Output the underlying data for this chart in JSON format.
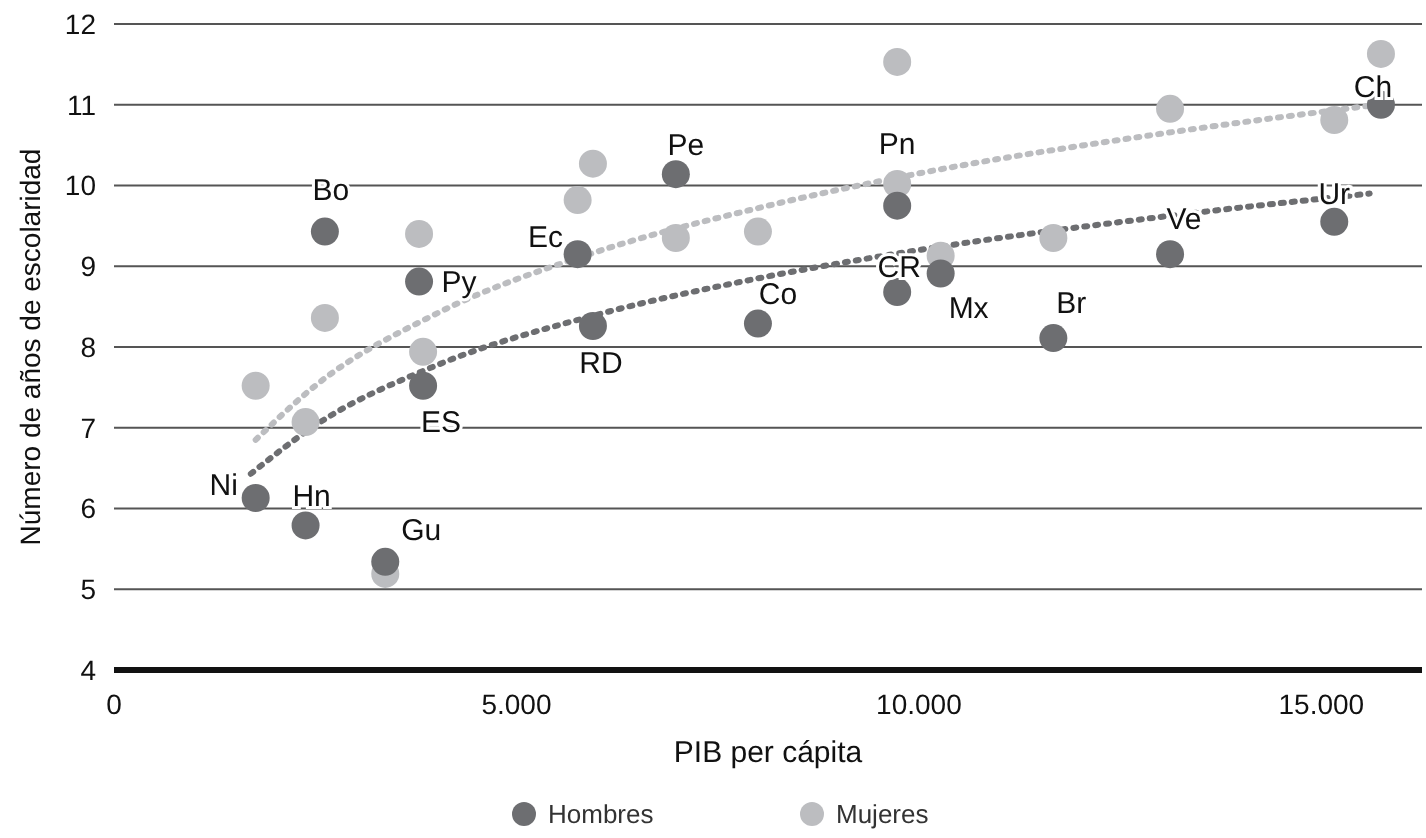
{
  "chart_data": {
    "type": "scatter",
    "xlabel": "PIB per cápita",
    "ylabel": "Número de años de escolaridad",
    "xlim": [
      0,
      16250
    ],
    "ylim": [
      4,
      12
    ],
    "xticks": [
      0,
      {
        "value": 5000,
        "label": "5.000"
      },
      {
        "value": 10000,
        "label": "10.000"
      },
      {
        "value": 15000,
        "label": "15.000"
      }
    ],
    "yticks": [
      4,
      5,
      6,
      7,
      8,
      9,
      10,
      11,
      12
    ],
    "grid": "y",
    "legend": "bottom",
    "marker": "circle",
    "series": [
      {
        "name": "Hombres",
        "color": "#6d6e71",
        "x": [
          2620,
          3790,
          5760,
          6980,
          5950,
          3840,
          1760,
          2380,
          3370,
          8000,
          9730,
          9730,
          10270,
          11670,
          13120,
          15160,
          15740
        ],
        "values": [
          9.43,
          8.81,
          9.15,
          10.14,
          8.26,
          7.52,
          6.13,
          5.79,
          5.34,
          8.29,
          9.75,
          8.68,
          8.91,
          8.11,
          9.15,
          9.55,
          11.0
        ]
      },
      {
        "name": "Mujeres",
        "color": "#bcbdc0",
        "x": [
          2620,
          3790,
          5760,
          5950,
          6980,
          8000,
          3840,
          1760,
          2380,
          3370,
          9730,
          9730,
          10270,
          11670,
          13120,
          15160,
          15740
        ],
        "values": [
          8.36,
          9.4,
          9.82,
          10.27,
          9.35,
          9.43,
          7.94,
          7.52,
          7.07,
          5.19,
          11.53,
          10.02,
          9.13,
          9.35,
          10.95,
          10.81,
          11.63
        ]
      },
      {
        "type": "line",
        "color": "#6d6e71",
        "marker": "none",
        "line_style": "dotted",
        "x": [
          1700,
          2500,
          4000,
          6000,
          8000,
          10000,
          13000,
          15600
        ],
        "values": [
          6.43,
          7.03,
          7.77,
          8.4,
          8.85,
          9.2,
          9.61,
          9.9
        ]
      },
      {
        "type": "line",
        "color": "#bcbdc0",
        "marker": "none",
        "line_style": "dotted",
        "x": [
          1760,
          2500,
          4000,
          6000,
          8000,
          10000,
          13000,
          15700
        ],
        "values": [
          6.85,
          7.52,
          8.41,
          9.18,
          9.72,
          10.15,
          10.64,
          11.0
        ]
      }
    ],
    "annotations": [
      {
        "text": "Bo",
        "x": 2620,
        "y": 9.43
      },
      {
        "text": "Py",
        "x": 3790,
        "y": 8.81
      },
      {
        "text": "Ec",
        "x": 5760,
        "y": 9.15
      },
      {
        "text": "Pe",
        "x": 6980,
        "y": 10.14
      },
      {
        "text": "RD",
        "x": 5950,
        "y": 8.26
      },
      {
        "text": "ES",
        "x": 3840,
        "y": 7.52
      },
      {
        "text": "Ni",
        "x": 1760,
        "y": 6.13
      },
      {
        "text": "Hn",
        "x": 2380,
        "y": 5.79
      },
      {
        "text": "Gu",
        "x": 3370,
        "y": 5.34
      },
      {
        "text": "Co",
        "x": 8000,
        "y": 8.29
      },
      {
        "text": "Pn",
        "x": 9730,
        "y": 9.75
      },
      {
        "text": "CR",
        "x": 9730,
        "y": 8.68
      },
      {
        "text": "Mx",
        "x": 10270,
        "y": 8.91
      },
      {
        "text": "Br",
        "x": 11670,
        "y": 8.11
      },
      {
        "text": "Ve",
        "x": 13120,
        "y": 9.15
      },
      {
        "text": "Ur",
        "x": 15160,
        "y": 9.55
      },
      {
        "text": "Ch",
        "x": 15740,
        "y": 11.0
      }
    ]
  }
}
